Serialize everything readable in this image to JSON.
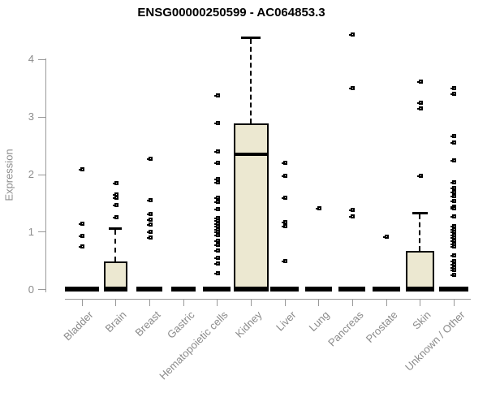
{
  "title": "ENSG00000250599 - AC064853.3",
  "style": {
    "box_fill": "#ECE8D1",
    "box_stroke": "#000000",
    "axis_color": "#999999",
    "tick_label_color": "#8C8C8C",
    "title_color": "#000000",
    "background": "#FFFFFF"
  },
  "chart_data": {
    "type": "boxplot",
    "title": "ENSG00000250599 - AC064853.3",
    "xlabel": "",
    "ylabel": "Expression",
    "ylim": [
      0,
      4.5
    ],
    "yticks": [
      0,
      1,
      2,
      3,
      4
    ],
    "grid": false,
    "legend": false,
    "categories": [
      "Bladder",
      "Brain",
      "Breast",
      "Gastric",
      "Hematopoietic cells",
      "Kidney",
      "Liver",
      "Lung",
      "Pancreas",
      "Prostate",
      "Skin",
      "Unknown / Other"
    ],
    "series": [
      {
        "name": "Bladder",
        "q1": 0,
        "median": 0,
        "q3": 0,
        "whisker_low": 0,
        "whisker_high": 0,
        "outliers": [
          2.09,
          1.15,
          0.94,
          0.75
        ]
      },
      {
        "name": "Brain",
        "q1": 0,
        "median": 0,
        "q3": 0.49,
        "whisker_low": 0,
        "whisker_high": 1.08,
        "outliers": [
          1.85,
          1.65,
          1.6,
          1.47,
          1.26
        ]
      },
      {
        "name": "Breast",
        "q1": 0,
        "median": 0,
        "q3": 0,
        "whisker_low": 0,
        "whisker_high": 0,
        "outliers": [
          2.28,
          1.55,
          1.32,
          1.22,
          1.13,
          1.01,
          0.9
        ]
      },
      {
        "name": "Gastric",
        "q1": 0,
        "median": 0,
        "q3": 0,
        "whisker_low": 0,
        "whisker_high": 0,
        "outliers": []
      },
      {
        "name": "Hematopoietic cells",
        "q1": 0,
        "median": 0,
        "q3": 0,
        "whisker_low": 0,
        "whisker_high": 0,
        "outliers": [
          3.37,
          2.9,
          2.4,
          2.2,
          1.92,
          1.86,
          1.6,
          1.53,
          1.4,
          1.25,
          1.2,
          1.15,
          1.1,
          1.05,
          1.0,
          0.95,
          0.85,
          0.78,
          0.68,
          0.56,
          0.45,
          0.28
        ]
      },
      {
        "name": "Kidney",
        "q1": 0,
        "median": 2.35,
        "q3": 2.89,
        "whisker_low": 0,
        "whisker_high": 4.4,
        "outliers": []
      },
      {
        "name": "Liver",
        "q1": 0,
        "median": 0,
        "q3": 0,
        "whisker_low": 0,
        "whisker_high": 0,
        "outliers": [
          2.21,
          1.98,
          1.6,
          1.18,
          1.1,
          0.5
        ]
      },
      {
        "name": "Lung",
        "q1": 0,
        "median": 0,
        "q3": 0,
        "whisker_low": 0,
        "whisker_high": 0,
        "outliers": [
          1.42
        ]
      },
      {
        "name": "Pancreas",
        "q1": 0,
        "median": 0,
        "q3": 0,
        "whisker_low": 0,
        "whisker_high": 0,
        "outliers": [
          4.43,
          3.5,
          1.39,
          1.28
        ]
      },
      {
        "name": "Prostate",
        "q1": 0,
        "median": 0,
        "q3": 0,
        "whisker_low": 0,
        "whisker_high": 0,
        "outliers": [
          0.92
        ]
      },
      {
        "name": "Skin",
        "q1": 0,
        "median": 0,
        "q3": 0.68,
        "whisker_low": 0,
        "whisker_high": 1.35,
        "outliers": [
          3.61,
          3.25,
          3.15,
          1.98
        ]
      },
      {
        "name": "Unknown / Other",
        "q1": 0,
        "median": 0,
        "q3": 0,
        "whisker_low": 0,
        "whisker_high": 0,
        "outliers": [
          3.5,
          3.4,
          2.67,
          2.56,
          2.24,
          1.87,
          1.77,
          1.69,
          1.63,
          1.54,
          1.44,
          1.41,
          1.27,
          1.11,
          1.05,
          1.0,
          0.95,
          0.9,
          0.85,
          0.8,
          0.75,
          0.59,
          0.49,
          0.44,
          0.39,
          0.34,
          0.26
        ]
      }
    ]
  }
}
